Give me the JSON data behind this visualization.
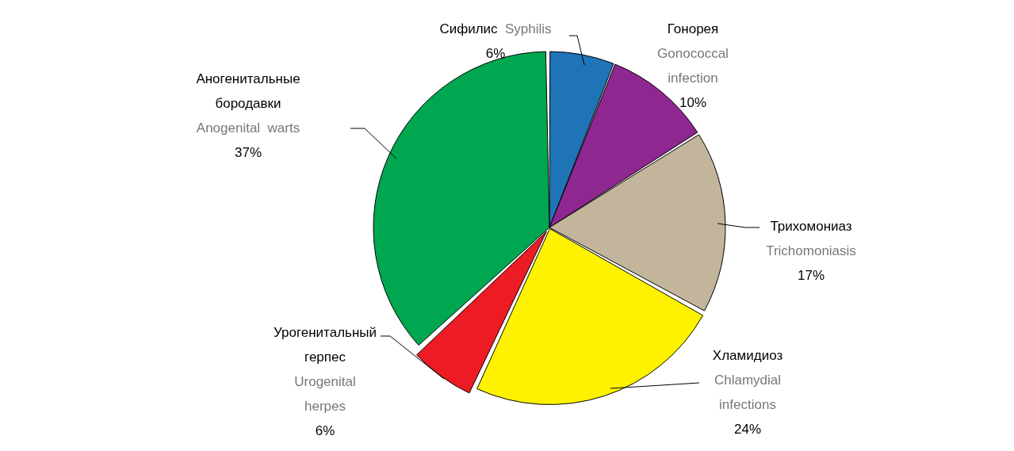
{
  "chart_data": {
    "type": "pie",
    "categories": [
      "Сифилис Syphilis",
      "Гонорея\nGonococcal\ninfection",
      "Трихомониаз\nTrichomoniasis",
      "Хламидиоз\nChlamydial\ninfections",
      "Урогенитальный\nгерпес\nUrogenital\nherpes",
      "Аногенитальные\nбородавки\nAnogenital warts"
    ],
    "values": [
      6,
      10,
      17,
      24,
      6,
      37
    ],
    "colors": [
      "#1f73b7",
      "#8e278f",
      "#c2b59b",
      "#fff200",
      "#ed1c24",
      "#00a650"
    ],
    "value_labels": [
      "6%",
      "10%",
      "17%",
      "24%",
      "6%",
      "37%"
    ],
    "legend": false
  }
}
